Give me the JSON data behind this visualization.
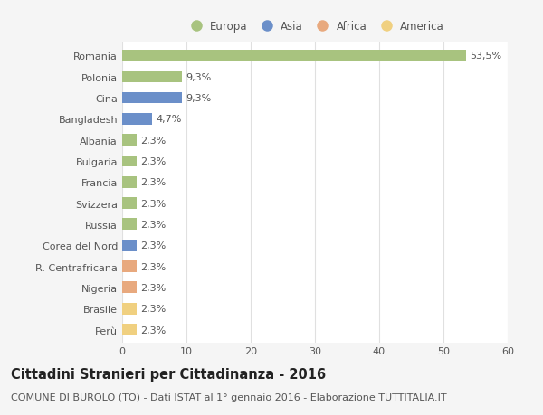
{
  "countries": [
    "Romania",
    "Polonia",
    "Cina",
    "Bangladesh",
    "Albania",
    "Bulgaria",
    "Francia",
    "Svizzera",
    "Russia",
    "Corea del Nord",
    "R. Centrafricana",
    "Nigeria",
    "Brasile",
    "Perù"
  ],
  "values": [
    53.5,
    9.3,
    9.3,
    4.7,
    2.3,
    2.3,
    2.3,
    2.3,
    2.3,
    2.3,
    2.3,
    2.3,
    2.3,
    2.3
  ],
  "labels": [
    "53,5%",
    "9,3%",
    "9,3%",
    "4,7%",
    "2,3%",
    "2,3%",
    "2,3%",
    "2,3%",
    "2,3%",
    "2,3%",
    "2,3%",
    "2,3%",
    "2,3%",
    "2,3%"
  ],
  "continents": [
    "Europa",
    "Europa",
    "Asia",
    "Asia",
    "Europa",
    "Europa",
    "Europa",
    "Europa",
    "Europa",
    "Asia",
    "Africa",
    "Africa",
    "America",
    "America"
  ],
  "continent_colors": {
    "Europa": "#a8c37f",
    "Asia": "#6b8fc9",
    "Africa": "#e8a97e",
    "America": "#f0d080"
  },
  "legend_order": [
    "Europa",
    "Asia",
    "Africa",
    "America"
  ],
  "xlim": [
    0,
    60
  ],
  "xticks": [
    0,
    10,
    20,
    30,
    40,
    50,
    60
  ],
  "background_color": "#f5f5f5",
  "plot_bg_color": "#ffffff",
  "title": "Cittadini Stranieri per Cittadinanza - 2016",
  "subtitle": "COMUNE DI BUROLO (TO) - Dati ISTAT al 1° gennaio 2016 - Elaborazione TUTTITALIA.IT",
  "title_fontsize": 10.5,
  "subtitle_fontsize": 8.0,
  "bar_height": 0.55,
  "label_fontsize": 8.0,
  "ytick_fontsize": 8.0,
  "xtick_fontsize": 8.0,
  "legend_fontsize": 8.5,
  "grid_color": "#e0e0e0",
  "text_color": "#555555",
  "title_color": "#222222"
}
